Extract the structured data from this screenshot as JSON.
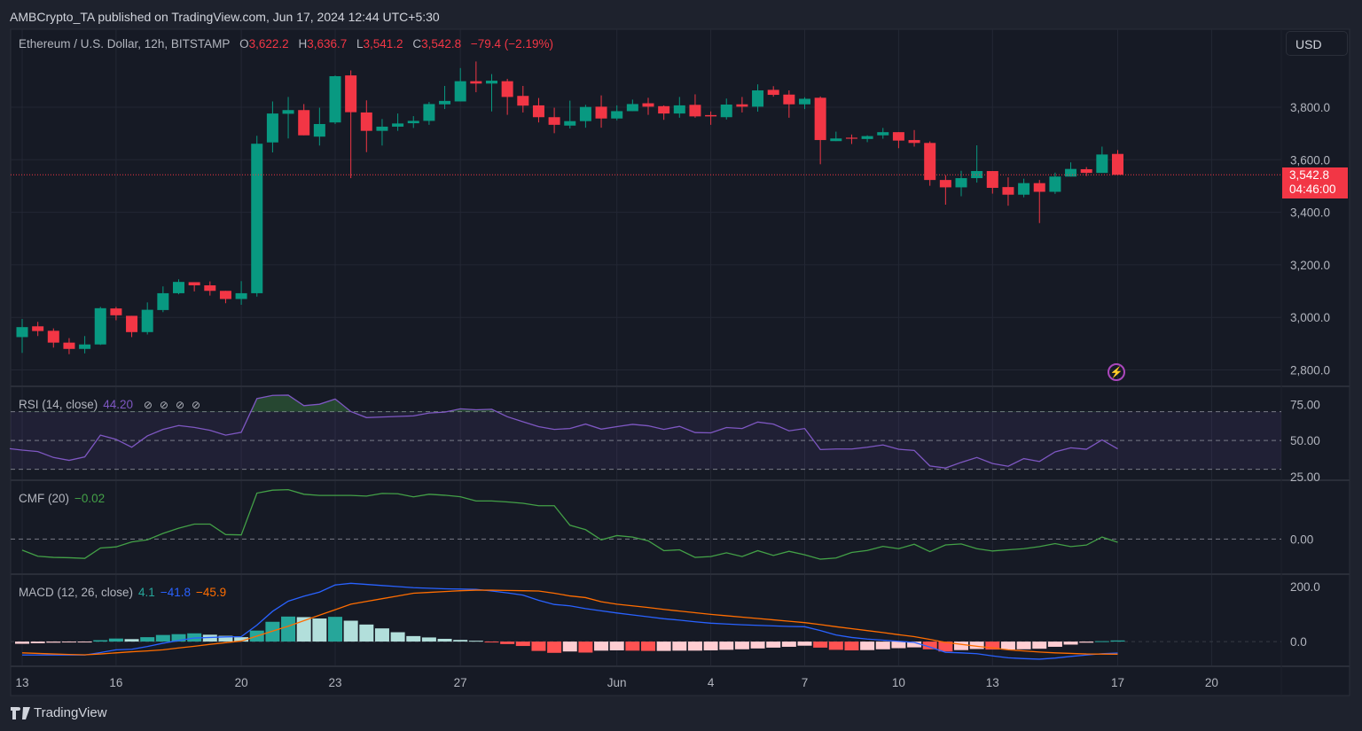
{
  "header": {
    "publisher_line": "AMBCrypto_TA published on TradingView.com, Jun 17, 2024 12:44 UTC+5:30"
  },
  "legend": {
    "symbol": "Ethereum / U.S. Dollar, 12h, BITSTAMP",
    "o_label": "O",
    "o": "3,622.2",
    "h_label": "H",
    "h": "3,636.7",
    "l_label": "L",
    "l": "3,541.2",
    "c_label": "C",
    "c": "3,542.8",
    "change": "−79.4 (−2.19%)"
  },
  "currency_button": "USD",
  "last_price": {
    "price": "3,542.8",
    "countdown": "04:46:00"
  },
  "event_icon": "lightning-icon",
  "indicators": {
    "rsi": {
      "label": "RSI (14, close)",
      "value": "44.20",
      "icons": [
        "hidden-value-icon",
        "hidden-value-icon",
        "hidden-value-icon",
        "hidden-value-icon"
      ],
      "icon_glyph": "⊘"
    },
    "cmf": {
      "label": "CMF (20)",
      "value": "−0.02"
    },
    "macd": {
      "label": "MACD (12, 26, close)",
      "hist_value": "4.1",
      "macd_value": "−41.8",
      "signal_value": "−45.9"
    }
  },
  "footer": {
    "brand": "TradingView",
    "logo_icon": "tradingview-logo-icon"
  },
  "colors": {
    "background": "#161a25",
    "frame": "#1e222d",
    "grid": "#232734",
    "up": "#089981",
    "down": "#f23645",
    "rsi": "#7e57c2",
    "rsi_band": "#7e57c2",
    "rsi_overbought_fill": "#4caf50",
    "cmf": "#43a047",
    "macd": "#2962ff",
    "signal": "#ff6d00",
    "hist_up_grow": "#26a69a",
    "hist_up_fall": "#b2dfdb",
    "hist_down_grow": "#ff5252",
    "hist_down_fall": "#ffcdd2"
  },
  "chart_data": [
    {
      "type": "candlestick",
      "pane": "price",
      "ylim": [
        2741,
        4090
      ],
      "y_ticks": [
        2800,
        3000,
        3200,
        3400,
        3600,
        3800
      ],
      "y_tick_labels": [
        "2,800.0",
        "3,000.0",
        "3,200.0",
        "3,400.0",
        "3,600.0",
        "3,800.0"
      ],
      "x_ticks": [
        {
          "label": "13",
          "at": "May 13 00:00"
        },
        {
          "label": "16",
          "at": "May 16 00:00"
        },
        {
          "label": "20",
          "at": "May 20 00:00"
        },
        {
          "label": "23",
          "at": "May 23 00:00"
        },
        {
          "label": "27",
          "at": "May 27 00:00"
        },
        {
          "label": "Jun",
          "at": "Jun 1 00:00"
        },
        {
          "label": "4",
          "at": "Jun 4 00:00"
        },
        {
          "label": "7",
          "at": "Jun 7 00:00"
        },
        {
          "label": "10",
          "at": "Jun 10 00:00"
        },
        {
          "label": "13",
          "at": "Jun 13 00:00"
        },
        {
          "label": "17",
          "at": "Jun 17 00:00"
        },
        {
          "label": "20",
          "at": "Jun 20 00:00"
        }
      ],
      "grid": true,
      "columns": [
        "time",
        "open",
        "high",
        "low",
        "close"
      ],
      "candles": [
        [
          "May 13 00:00",
          2925,
          2994,
          2865,
          2963
        ],
        [
          "May 13 12:00",
          2966,
          2983,
          2929,
          2948
        ],
        [
          "May 14 00:00",
          2949,
          2958,
          2885,
          2904
        ],
        [
          "May 14 12:00",
          2904,
          2921,
          2860,
          2880
        ],
        [
          "May 15 00:00",
          2880,
          2929,
          2863,
          2897
        ],
        [
          "May 15 12:00",
          2897,
          3040,
          2895,
          3035
        ],
        [
          "May 16 00:00",
          3034,
          3040,
          2989,
          3008
        ],
        [
          "May 16 12:00",
          3006,
          3006,
          2925,
          2944
        ],
        [
          "May 17 00:00",
          2944,
          3057,
          2935,
          3029
        ],
        [
          "May 17 12:00",
          3028,
          3118,
          3020,
          3092
        ],
        [
          "May 18 00:00",
          3092,
          3145,
          3088,
          3135
        ],
        [
          "May 18 12:00",
          3134,
          3134,
          3099,
          3122
        ],
        [
          "May 19 00:00",
          3122,
          3137,
          3083,
          3101
        ],
        [
          "May 19 12:00",
          3101,
          3101,
          3054,
          3070
        ],
        [
          "May 20 00:00",
          3070,
          3138,
          3048,
          3092
        ],
        [
          "May 20 12:00",
          3092,
          3691,
          3079,
          3661
        ],
        [
          "May 21 00:00",
          3666,
          3822,
          3628,
          3776
        ],
        [
          "May 21 12:00",
          3775,
          3839,
          3681,
          3789
        ],
        [
          "May 22 00:00",
          3789,
          3812,
          3693,
          3693
        ],
        [
          "May 22 12:00",
          3688,
          3798,
          3654,
          3736
        ],
        [
          "May 23 00:00",
          3742,
          3921,
          3736,
          3918
        ],
        [
          "May 23 12:00",
          3921,
          3940,
          3530,
          3781
        ],
        [
          "May 24 00:00",
          3780,
          3826,
          3629,
          3710
        ],
        [
          "May 24 12:00",
          3710,
          3755,
          3654,
          3726
        ],
        [
          "May 25 00:00",
          3726,
          3776,
          3710,
          3738
        ],
        [
          "May 25 12:00",
          3739,
          3766,
          3721,
          3748
        ],
        [
          "May 26 00:00",
          3748,
          3820,
          3733,
          3812
        ],
        [
          "May 26 12:00",
          3811,
          3881,
          3793,
          3824
        ],
        [
          "May 27 00:00",
          3822,
          3949,
          3822,
          3899
        ],
        [
          "May 27 12:00",
          3899,
          3974,
          3857,
          3890
        ],
        [
          "May 28 00:00",
          3890,
          3926,
          3784,
          3901
        ],
        [
          "May 28 12:00",
          3899,
          3908,
          3771,
          3839
        ],
        [
          "May 29 00:00",
          3843,
          3881,
          3780,
          3806
        ],
        [
          "May 29 12:00",
          3807,
          3835,
          3742,
          3762
        ],
        [
          "May 30 00:00",
          3762,
          3798,
          3701,
          3733
        ],
        [
          "May 30 12:00",
          3730,
          3825,
          3719,
          3747
        ],
        [
          "May 31 00:00",
          3747,
          3809,
          3722,
          3801
        ],
        [
          "May 31 12:00",
          3802,
          3845,
          3722,
          3757
        ],
        [
          "Jun 1 00:00",
          3757,
          3807,
          3750,
          3785
        ],
        [
          "Jun 1 12:00",
          3785,
          3829,
          3785,
          3812
        ],
        [
          "Jun 2 00:00",
          3815,
          3836,
          3771,
          3802
        ],
        [
          "Jun 2 12:00",
          3804,
          3807,
          3752,
          3776
        ],
        [
          "Jun 3 00:00",
          3776,
          3839,
          3760,
          3807
        ],
        [
          "Jun 3 12:00",
          3809,
          3849,
          3760,
          3765
        ],
        [
          "Jun 4 00:00",
          3770,
          3784,
          3733,
          3765
        ],
        [
          "Jun 4 12:00",
          3762,
          3833,
          3753,
          3810
        ],
        [
          "Jun 5 00:00",
          3811,
          3839,
          3780,
          3802
        ],
        [
          "Jun 5 12:00",
          3802,
          3887,
          3783,
          3864
        ],
        [
          "Jun 6 00:00",
          3866,
          3880,
          3840,
          3847
        ],
        [
          "Jun 6 12:00",
          3848,
          3864,
          3760,
          3811
        ],
        [
          "Jun 7 00:00",
          3811,
          3838,
          3793,
          3832
        ],
        [
          "Jun 7 12:00",
          3836,
          3841,
          3583,
          3675
        ],
        [
          "Jun 8 00:00",
          3671,
          3707,
          3671,
          3681
        ],
        [
          "Jun 8 12:00",
          3684,
          3696,
          3660,
          3680
        ],
        [
          "Jun 9 00:00",
          3679,
          3693,
          3667,
          3690
        ],
        [
          "Jun 9 12:00",
          3693,
          3721,
          3680,
          3705
        ],
        [
          "Jun 10 00:00",
          3705,
          3705,
          3644,
          3673
        ],
        [
          "Jun 10 12:00",
          3675,
          3713,
          3650,
          3664
        ],
        [
          "Jun 11 00:00",
          3664,
          3670,
          3501,
          3523
        ],
        [
          "Jun 11 12:00",
          3523,
          3541,
          3429,
          3495
        ],
        [
          "Jun 12 00:00",
          3495,
          3558,
          3461,
          3530
        ],
        [
          "Jun 12 12:00",
          3530,
          3655,
          3513,
          3557
        ],
        [
          "Jun 13 00:00",
          3557,
          3557,
          3471,
          3493
        ],
        [
          "Jun 13 12:00",
          3496,
          3533,
          3425,
          3467
        ],
        [
          "Jun 14 00:00",
          3467,
          3528,
          3457,
          3511
        ],
        [
          "Jun 14 12:00",
          3511,
          3523,
          3359,
          3478
        ],
        [
          "Jun 15 00:00",
          3478,
          3551,
          3470,
          3536
        ],
        [
          "Jun 15 12:00",
          3536,
          3590,
          3536,
          3565
        ],
        [
          "Jun 16 00:00",
          3564,
          3572,
          3538,
          3550
        ],
        [
          "Jun 16 12:00",
          3550,
          3650,
          3550,
          3620
        ],
        [
          "Jun 17 00:00",
          3622.2,
          3636.7,
          3541.2,
          3542.8
        ]
      ]
    },
    {
      "type": "line",
      "pane": "rsi",
      "name": "RSI (14, close)",
      "ylim": [
        23,
        87
      ],
      "y_ticks": [
        75,
        50,
        25
      ],
      "y_tick_labels": [
        "75.00",
        "50.00",
        "25.00"
      ],
      "bands": [
        70,
        50,
        30
      ],
      "values": [
        43.3,
        42.3,
        38.2,
        36.2,
        38.6,
        53.7,
        50.8,
        45.3,
        53.2,
        57.7,
        60.4,
        59.1,
        57.1,
        53.7,
        55.7,
        79.1,
        81.3,
        81.5,
        74.2,
        75.2,
        78.8,
        70.1,
        65.9,
        66.3,
        66.7,
        67.1,
        69.1,
        69.7,
        72,
        71.3,
        71.7,
        66.5,
        63,
        59.6,
        57.7,
        58.3,
        61.4,
        57.9,
        59.6,
        61.2,
        60.2,
        57.7,
        59.8,
        55.5,
        55.3,
        59,
        58.3,
        62.8,
        61.4,
        56.7,
        58.3,
        43.7,
        44.1,
        44.1,
        45.3,
        46.9,
        43.9,
        43.1,
        32.3,
        30.9,
        34.8,
        38.2,
        34,
        32.1,
        37.4,
        35.4,
        42.1,
        44.9,
        43.9,
        50.4,
        44.2
      ]
    },
    {
      "type": "line",
      "pane": "cmf",
      "name": "CMF (20)",
      "ylim": [
        -0.209,
        0.353
      ],
      "y_ticks": [
        0
      ],
      "y_tick_labels": [
        "0.00"
      ],
      "values": [
        -0.068,
        -0.105,
        -0.112,
        -0.114,
        -0.118,
        -0.055,
        -0.048,
        -0.018,
        -0.005,
        0.034,
        0.066,
        0.091,
        0.091,
        0.027,
        0.025,
        0.28,
        0.298,
        0.301,
        0.273,
        0.266,
        0.266,
        0.266,
        0.262,
        0.278,
        0.276,
        0.257,
        0.273,
        0.267,
        0.258,
        0.232,
        0.232,
        0.226,
        0.218,
        0.203,
        0.203,
        0.084,
        0.057,
        -0.005,
        0.021,
        0.012,
        -0.011,
        -0.071,
        -0.066,
        -0.112,
        -0.107,
        -0.084,
        -0.107,
        -0.071,
        -0.1,
        -0.075,
        -0.096,
        -0.123,
        -0.116,
        -0.082,
        -0.07,
        -0.045,
        -0.059,
        -0.032,
        -0.077,
        -0.036,
        -0.03,
        -0.059,
        -0.073,
        -0.066,
        -0.059,
        -0.046,
        -0.028,
        -0.046,
        -0.037,
        0.012,
        -0.02
      ]
    },
    {
      "type": "bar+line",
      "pane": "macd",
      "name": "MACD (12, 26, close)",
      "ylim": [
        -90,
        242
      ],
      "y_ticks": [
        200,
        0
      ],
      "y_tick_labels": [
        "200.0",
        "0.0"
      ],
      "macd": [
        -49,
        -49,
        -49,
        -49,
        -49,
        -40,
        -30,
        -28,
        -18,
        -6,
        4,
        13,
        15,
        17,
        18,
        60,
        110,
        147,
        165,
        180,
        206,
        212,
        208,
        204,
        200,
        196,
        194,
        192,
        191,
        190,
        184,
        177,
        169,
        150,
        135,
        130,
        120,
        112,
        104,
        97,
        90,
        83,
        78,
        72,
        67,
        64,
        61,
        59,
        57,
        55,
        54,
        40,
        24,
        15,
        9,
        5,
        1,
        -3,
        -20,
        -39,
        -41,
        -44,
        -52,
        -59,
        -62,
        -64,
        -60,
        -54,
        -49,
        -44,
        -41.8
      ],
      "signal": [
        -41,
        -43,
        -45,
        -47,
        -48,
        -45,
        -41,
        -37,
        -34,
        -30,
        -23,
        -17,
        -10,
        -4,
        2,
        20,
        38,
        56,
        76,
        96,
        116,
        136,
        146,
        156,
        166,
        176,
        179,
        182,
        185,
        187,
        187,
        186,
        185,
        184,
        176,
        166,
        160,
        145,
        136,
        130,
        124,
        117,
        111,
        105,
        99,
        94,
        89,
        84,
        79,
        74,
        69,
        62,
        54,
        47,
        40,
        33,
        25,
        18,
        8,
        -3,
        -10,
        -17,
        -23,
        -30,
        -34,
        -38,
        -41,
        -43,
        -45,
        -45.5,
        -45.9
      ],
      "histogram": [
        -8,
        -6,
        -4,
        -2,
        -1,
        5,
        11,
        9,
        16,
        24,
        27,
        30,
        25,
        21,
        16,
        40,
        72,
        91,
        89,
        84,
        90,
        76,
        62,
        48,
        34,
        20,
        15,
        10,
        6,
        3,
        -3,
        -9,
        -16,
        -34,
        -41,
        -36,
        -40,
        -33,
        -32,
        -33,
        -34,
        -34,
        -33,
        -33,
        -32,
        -30,
        -28,
        -25,
        -22,
        -19,
        -15,
        -22,
        -30,
        -32,
        -31,
        -28,
        -24,
        -21,
        -28,
        -36,
        -31,
        -27,
        -29,
        -29,
        -28,
        -26,
        -19,
        -11,
        -4,
        1.5,
        4.1
      ]
    }
  ]
}
